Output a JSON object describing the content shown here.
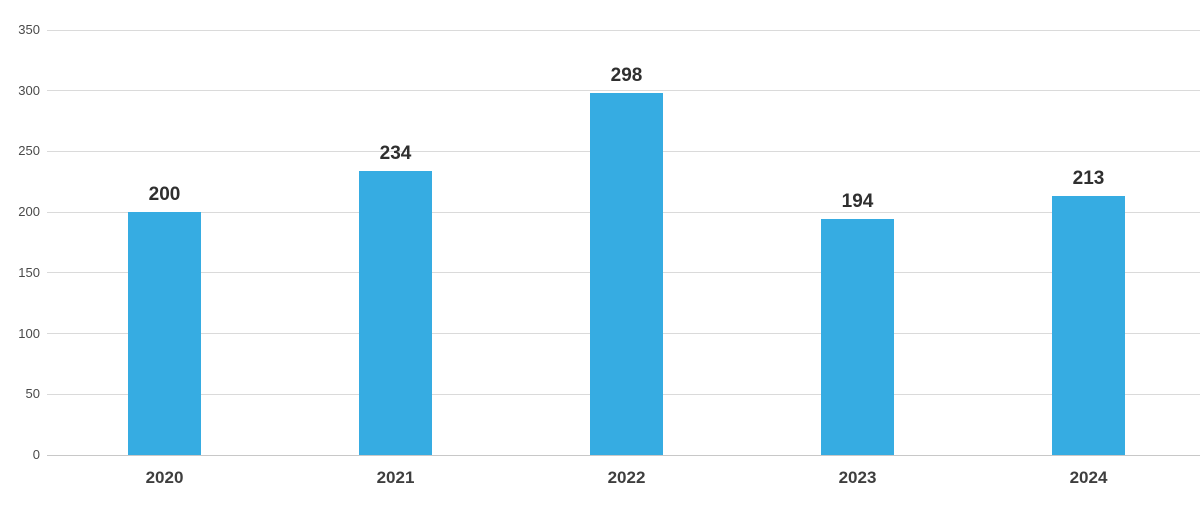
{
  "chart_data": {
    "type": "bar",
    "title": "",
    "xlabel": "",
    "ylabel": "",
    "categories": [
      "2020",
      "2021",
      "2022",
      "2023",
      "2024"
    ],
    "values": [
      200,
      234,
      298,
      194,
      213
    ],
    "value_labels": [
      "200",
      "234",
      "298",
      "194",
      "213"
    ],
    "ylim": [
      0,
      350
    ],
    "yticks": [
      0,
      50,
      100,
      150,
      200,
      250,
      300,
      350
    ],
    "ytick_labels": [
      "0",
      "50",
      "100",
      "150",
      "200",
      "250",
      "300",
      "350"
    ],
    "grid": true,
    "legend": false,
    "colors": {
      "bar": "#36ACE2",
      "gridline": "#dadada",
      "baseline": "#c8c8c8",
      "ytick_text": "#4a4a4a",
      "xtick_text": "#3e3e3e",
      "value_text": "#2f2f2f",
      "background": "#ffffff"
    }
  }
}
